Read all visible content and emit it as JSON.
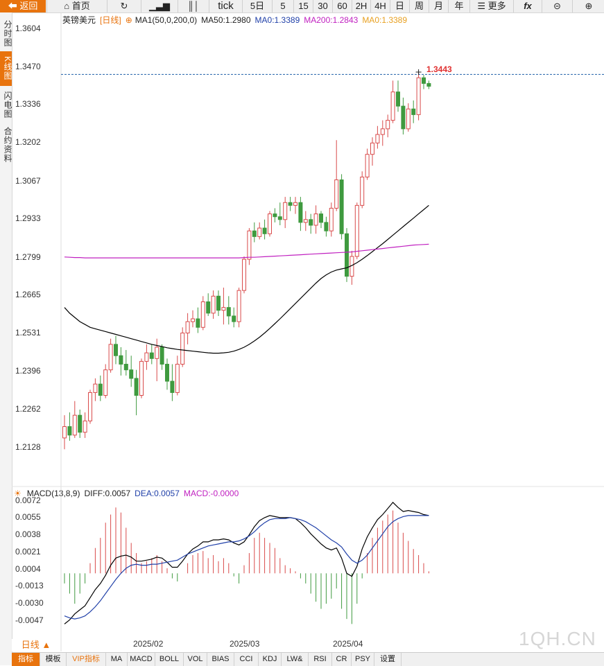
{
  "toolbar": {
    "back": "返回",
    "home": "首页",
    "tick": "tick",
    "periods": [
      "5日",
      "5",
      "15",
      "30",
      "60",
      "2H",
      "4H",
      "日",
      "周",
      "月",
      "年"
    ],
    "more": "更多",
    "fx": "fx"
  },
  "sidebar": {
    "items": [
      "分时图",
      "K线图",
      "闪电图",
      "合约资料"
    ],
    "active_index": 1
  },
  "legend_main": {
    "symbol": "英镑美元",
    "period": "[日线]",
    "ma1": "MA1(50,0,200,0)",
    "ma50": "MA50:1.2980",
    "ma0_1": "MA0:1.3389",
    "ma200": "MA200:1.2843",
    "ma0_2": "MA0:1.3389"
  },
  "legend_macd": {
    "name": "MACD(13,8,9)",
    "diff": "DIFF:0.0057",
    "dea": "DEA:0.0057",
    "macd": "MACD:-0.0000"
  },
  "price_axis": [
    "1.3604",
    "1.3470",
    "1.3336",
    "1.3202",
    "1.3067",
    "1.2933",
    "1.2799",
    "1.2665",
    "1.2531",
    "1.2396",
    "1.2262",
    "1.2128"
  ],
  "macd_axis": [
    "0.0072",
    "0.0055",
    "0.0038",
    "0.0021",
    "0.0004",
    "-0.0013",
    "-0.0030",
    "-0.0047"
  ],
  "date_labels": [
    "2025/02",
    "2025/03",
    "2025/04"
  ],
  "last_price_tag": "1.3443",
  "period_selector": "日线 ▲",
  "watermark": "1QH.CN",
  "bottom_tabs": [
    "指标",
    "模板",
    "VIP指标",
    "MA",
    "MACD",
    "BOLL",
    "VOL",
    "BIAS",
    "CCI",
    "KDJ",
    "LW&",
    "RSI",
    "CR",
    "PSY",
    "设置"
  ],
  "colors": {
    "up": "#d94a4a",
    "down": "#3f9a3f",
    "ma50": "#000000",
    "ma200": "#c020c0",
    "accent": "#e8730d",
    "current": "#1f5fa8"
  },
  "chart_data": {
    "type": "candlestick",
    "title": "英镑美元 日线",
    "ylim": [
      1.208,
      1.365
    ],
    "current_price": 1.3443,
    "ohlc": [
      [
        1.216,
        1.224,
        1.212,
        1.22
      ],
      [
        1.22,
        1.225,
        1.215,
        1.217
      ],
      [
        1.217,
        1.229,
        1.216,
        1.224
      ],
      [
        1.224,
        1.226,
        1.216,
        1.218
      ],
      [
        1.218,
        1.225,
        1.216,
        1.222
      ],
      [
        1.222,
        1.233,
        1.221,
        1.232
      ],
      [
        1.232,
        1.237,
        1.229,
        1.235
      ],
      [
        1.235,
        1.238,
        1.229,
        1.231
      ],
      [
        1.231,
        1.242,
        1.23,
        1.24
      ],
      [
        1.24,
        1.251,
        1.239,
        1.249
      ],
      [
        1.249,
        1.252,
        1.242,
        1.245
      ],
      [
        1.245,
        1.248,
        1.238,
        1.242
      ],
      [
        1.242,
        1.247,
        1.238,
        1.24
      ],
      [
        1.24,
        1.245,
        1.234,
        1.237
      ],
      [
        1.237,
        1.24,
        1.224,
        1.231
      ],
      [
        1.231,
        1.244,
        1.23,
        1.243
      ],
      [
        1.243,
        1.249,
        1.24,
        1.246
      ],
      [
        1.246,
        1.249,
        1.242,
        1.244
      ],
      [
        1.244,
        1.251,
        1.236,
        1.248
      ],
      [
        1.248,
        1.249,
        1.24,
        1.242
      ],
      [
        1.242,
        1.244,
        1.233,
        1.236
      ],
      [
        1.236,
        1.242,
        1.229,
        1.232
      ],
      [
        1.232,
        1.245,
        1.231,
        1.242
      ],
      [
        1.242,
        1.255,
        1.241,
        1.253
      ],
      [
        1.253,
        1.26,
        1.249,
        1.257
      ],
      [
        1.257,
        1.261,
        1.255,
        1.258
      ],
      [
        1.258,
        1.262,
        1.253,
        1.255
      ],
      [
        1.255,
        1.266,
        1.254,
        1.264
      ],
      [
        1.264,
        1.267,
        1.259,
        1.26
      ],
      [
        1.26,
        1.268,
        1.258,
        1.266
      ],
      [
        1.266,
        1.268,
        1.259,
        1.261
      ],
      [
        1.261,
        1.269,
        1.256,
        1.262
      ],
      [
        1.262,
        1.266,
        1.256,
        1.259
      ],
      [
        1.259,
        1.262,
        1.255,
        1.257
      ],
      [
        1.257,
        1.269,
        1.255,
        1.268
      ],
      [
        1.268,
        1.28,
        1.267,
        1.279
      ],
      [
        1.279,
        1.29,
        1.277,
        1.289
      ],
      [
        1.289,
        1.292,
        1.285,
        1.287
      ],
      [
        1.287,
        1.292,
        1.286,
        1.29
      ],
      [
        1.29,
        1.293,
        1.286,
        1.288
      ],
      [
        1.288,
        1.296,
        1.287,
        1.295
      ],
      [
        1.295,
        1.297,
        1.292,
        1.294
      ],
      [
        1.294,
        1.299,
        1.291,
        1.293
      ],
      [
        1.293,
        1.301,
        1.29,
        1.299
      ],
      [
        1.299,
        1.301,
        1.296,
        1.298
      ],
      [
        1.298,
        1.301,
        1.295,
        1.299
      ],
      [
        1.299,
        1.301,
        1.289,
        1.292
      ],
      [
        1.292,
        1.296,
        1.289,
        1.293
      ],
      [
        1.293,
        1.295,
        1.288,
        1.291
      ],
      [
        1.291,
        1.298,
        1.288,
        1.295
      ],
      [
        1.295,
        1.296,
        1.29,
        1.292
      ],
      [
        1.292,
        1.294,
        1.287,
        1.289
      ],
      [
        1.289,
        1.299,
        1.287,
        1.297
      ],
      [
        1.297,
        1.321,
        1.296,
        1.307
      ],
      [
        1.307,
        1.309,
        1.286,
        1.288
      ],
      [
        1.288,
        1.29,
        1.271,
        1.273
      ],
      [
        1.273,
        1.282,
        1.27,
        1.28
      ],
      [
        1.28,
        1.299,
        1.279,
        1.298
      ],
      [
        1.298,
        1.31,
        1.297,
        1.308
      ],
      [
        1.308,
        1.318,
        1.307,
        1.316
      ],
      [
        1.316,
        1.322,
        1.312,
        1.32
      ],
      [
        1.32,
        1.326,
        1.318,
        1.323
      ],
      [
        1.323,
        1.328,
        1.319,
        1.325
      ],
      [
        1.325,
        1.33,
        1.322,
        1.328
      ],
      [
        1.328,
        1.342,
        1.327,
        1.338
      ],
      [
        1.338,
        1.342,
        1.331,
        1.333
      ],
      [
        1.333,
        1.336,
        1.323,
        1.325
      ],
      [
        1.325,
        1.334,
        1.324,
        1.332
      ],
      [
        1.332,
        1.335,
        1.327,
        1.33
      ],
      [
        1.33,
        1.345,
        1.328,
        1.343
      ],
      [
        1.343,
        1.344,
        1.339,
        1.341
      ],
      [
        1.341,
        1.342,
        1.339,
        1.34
      ]
    ],
    "ma50": [
      1.262,
      1.26,
      1.2585,
      1.257,
      1.256,
      1.255,
      1.2545,
      1.254,
      1.2535,
      1.253,
      1.2525,
      1.252,
      1.2515,
      1.251,
      1.2505,
      1.25,
      1.2495,
      1.249,
      1.2486,
      1.2482,
      1.2478,
      1.2475,
      1.2472,
      1.247,
      1.2468,
      1.2466,
      1.2464,
      1.2462,
      1.246,
      1.2459,
      1.2459,
      1.246,
      1.2462,
      1.2466,
      1.2472,
      1.248,
      1.249,
      1.2502,
      1.2515,
      1.253,
      1.2546,
      1.2563,
      1.258,
      1.2598,
      1.2616,
      1.2634,
      1.2652,
      1.267,
      1.2688,
      1.2706,
      1.2722,
      1.2735,
      1.2745,
      1.2752,
      1.2756,
      1.276,
      1.2768,
      1.2778,
      1.279,
      1.2803,
      1.2817,
      1.2831,
      1.2845,
      1.286,
      1.2875,
      1.289,
      1.2905,
      1.292,
      1.2935,
      1.295,
      1.2965,
      1.298
    ],
    "ma200": [
      1.2798,
      1.2797,
      1.2796,
      1.2796,
      1.2795,
      1.2795,
      1.2795,
      1.2795,
      1.2795,
      1.2795,
      1.2795,
      1.2795,
      1.2795,
      1.2795,
      1.2795,
      1.2795,
      1.2795,
      1.2795,
      1.2795,
      1.2795,
      1.2795,
      1.2795,
      1.2795,
      1.2795,
      1.2795,
      1.2795,
      1.2795,
      1.2795,
      1.2795,
      1.2795,
      1.2795,
      1.2795,
      1.2795,
      1.2795,
      1.2795,
      1.2796,
      1.2797,
      1.2797,
      1.2798,
      1.2799,
      1.28,
      1.2801,
      1.2802,
      1.2803,
      1.2804,
      1.2805,
      1.2806,
      1.2807,
      1.2808,
      1.2809,
      1.281,
      1.2811,
      1.2812,
      1.2813,
      1.2814,
      1.2815,
      1.2816,
      1.2818,
      1.282,
      1.2822,
      1.2824,
      1.2826,
      1.2828,
      1.283,
      1.2832,
      1.2834,
      1.2836,
      1.2838,
      1.284,
      1.2841,
      1.2842,
      1.2843
    ],
    "macd_ylim": [
      -0.006,
      0.008
    ],
    "diff": [
      -0.005,
      -0.0046,
      -0.004,
      -0.0036,
      -0.0032,
      -0.0024,
      -0.0016,
      -0.001,
      -0.0002,
      0.0008,
      0.0015,
      0.0017,
      0.0018,
      0.0016,
      0.0012,
      0.0012,
      0.0013,
      0.0014,
      0.0016,
      0.0015,
      0.0011,
      0.0006,
      0.0006,
      0.0012,
      0.0019,
      0.0024,
      0.0027,
      0.0031,
      0.0031,
      0.0033,
      0.0033,
      0.0034,
      0.0033,
      0.003,
      0.0028,
      0.0031,
      0.0038,
      0.0046,
      0.0052,
      0.0055,
      0.0057,
      0.0056,
      0.0055,
      0.0055,
      0.0055,
      0.0054,
      0.005,
      0.0045,
      0.0039,
      0.0034,
      0.0029,
      0.0025,
      0.0023,
      0.0025,
      0.0015,
      0.0,
      -0.0003,
      0.0007,
      0.0024,
      0.0036,
      0.0045,
      0.0053,
      0.0058,
      0.0064,
      0.007,
      0.0065,
      0.0061,
      0.0062,
      0.0061,
      0.006,
      0.0058,
      0.0057
    ],
    "dea": [
      -0.0042,
      -0.0044,
      -0.0045,
      -0.0044,
      -0.0042,
      -0.0038,
      -0.0033,
      -0.0027,
      -0.002,
      -0.0013,
      -0.0006,
      0.0,
      0.0005,
      0.0008,
      0.0009,
      0.0008,
      0.0008,
      0.0009,
      0.0009,
      0.001,
      0.0011,
      0.0012,
      0.0013,
      0.0016,
      0.0019,
      0.0021,
      0.0023,
      0.0025,
      0.0027,
      0.0028,
      0.0029,
      0.003,
      0.0031,
      0.0031,
      0.0032,
      0.0034,
      0.0037,
      0.0041,
      0.0046,
      0.005,
      0.0053,
      0.0054,
      0.0054,
      0.0054,
      0.0055,
      0.0054,
      0.0053,
      0.0051,
      0.0048,
      0.0045,
      0.0041,
      0.0037,
      0.0033,
      0.003,
      0.0026,
      0.0019,
      0.0013,
      0.001,
      0.0013,
      0.0018,
      0.0025,
      0.0032,
      0.0039,
      0.0046,
      0.0051,
      0.0054,
      0.0056,
      0.0057,
      0.0057,
      0.0057,
      0.0057,
      0.0057
    ],
    "macd_hist": [
      -0.001,
      -0.002,
      -0.003,
      -0.002,
      -0.001,
      0.001,
      0.0025,
      0.0035,
      0.005,
      0.0058,
      0.0065,
      0.006,
      0.0045,
      0.003,
      0.002,
      0.001,
      0.0012,
      0.0015,
      0.0018,
      0.0012,
      0.0005,
      -0.0005,
      -0.0008,
      0.0,
      0.001,
      0.0018,
      0.002,
      0.0022,
      0.0015,
      0.0018,
      0.0012,
      0.0015,
      0.001,
      -0.0003,
      -0.001,
      0.0008,
      0.002,
      0.0035,
      0.004,
      0.0035,
      0.003,
      0.0025,
      0.0015,
      0.0008,
      0.0005,
      0.0002,
      -0.0005,
      -0.001,
      -0.002,
      -0.0028,
      -0.0035,
      -0.003,
      -0.0025,
      -0.0015,
      -0.0035,
      -0.0045,
      -0.005,
      -0.003,
      -0.0005,
      0.002,
      0.0035,
      0.0045,
      0.0052,
      0.0058,
      0.0062,
      0.005,
      0.004,
      0.0032,
      0.0024,
      0.0018,
      0.001,
      0.0002
    ]
  }
}
